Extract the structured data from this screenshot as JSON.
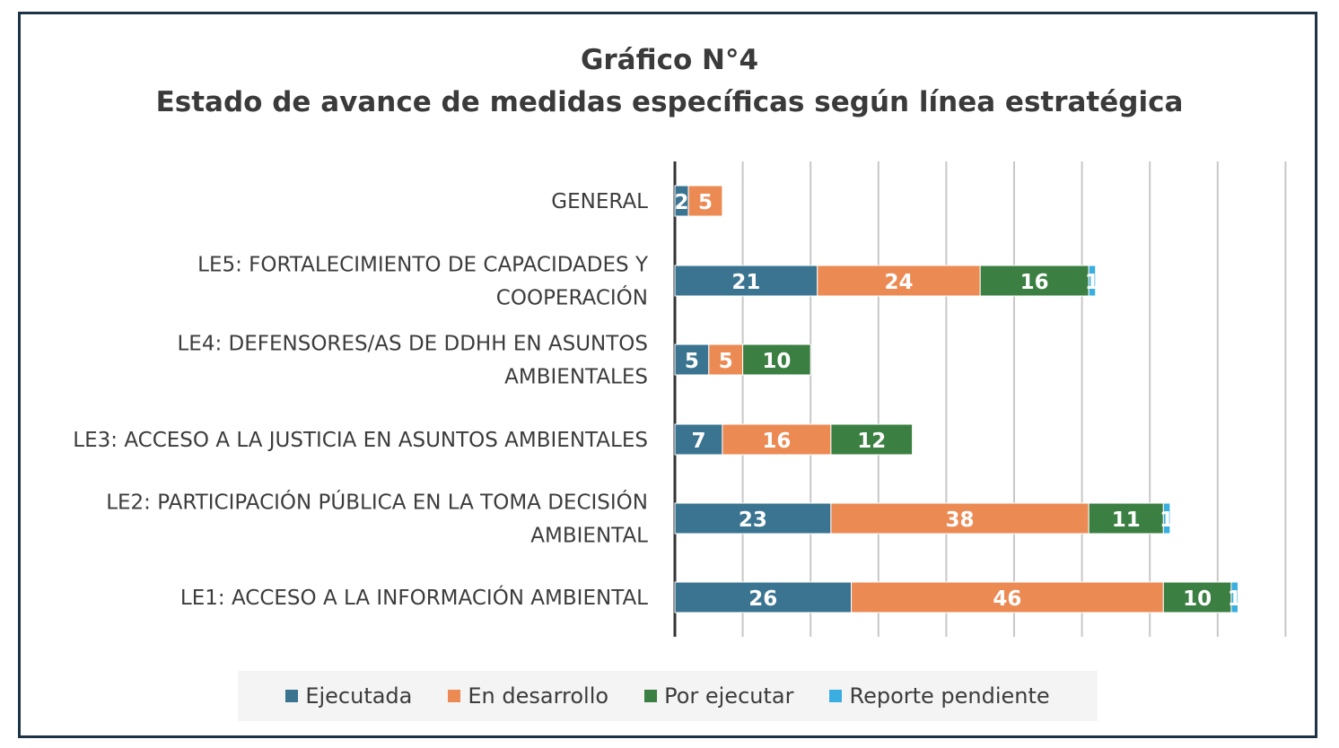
{
  "title_line1": "Gráfico N°4",
  "title_line2": "Estado de avance de medidas específicas según línea estratégica",
  "chart_data": {
    "type": "bar",
    "orientation": "horizontal",
    "stacked": true,
    "categories": [
      "GENERAL",
      "LE5: FORTALECIMIENTO DE CAPACIDADES Y COOPERACIÓN",
      "LE4: DEFENSORES/AS DE DDHH EN ASUNTOS AMBIENTALES",
      "LE3: ACCESO A LA JUSTICIA EN ASUNTOS AMBIENTALES",
      "LE2: PARTICIPACIÓN PÚBLICA EN LA TOMA DECISIÓN AMBIENTAL",
      "LE1: ACCESO A LA INFORMACIÓN AMBIENTAL"
    ],
    "category_label_lines": [
      [
        "GENERAL"
      ],
      [
        "LE5: FORTALECIMIENTO DE CAPACIDADES Y",
        "COOPERACIÓN"
      ],
      [
        "LE4: DEFENSORES/AS DE DDHH EN ASUNTOS",
        "AMBIENTALES"
      ],
      [
        "LE3: ACCESO A LA JUSTICIA EN ASUNTOS AMBIENTALES"
      ],
      [
        "LE2: PARTICIPACIÓN PÚBLICA EN LA TOMA DECISIÓN",
        "AMBIENTAL"
      ],
      [
        "LE1: ACCESO A LA INFORMACIÓN AMBIENTAL"
      ]
    ],
    "series": [
      {
        "name": "Ejecutada",
        "color": "#3a7491",
        "values": [
          2,
          21,
          5,
          7,
          23,
          26
        ]
      },
      {
        "name": "En desarrollo",
        "color": "#ec8a54",
        "values": [
          5,
          24,
          5,
          16,
          38,
          46
        ]
      },
      {
        "name": "Por ejecutar",
        "color": "#3b7f42",
        "values": [
          0,
          16,
          10,
          12,
          11,
          10
        ]
      },
      {
        "name": "Reporte pendiente",
        "color": "#3aaee0",
        "values": [
          0,
          1,
          0,
          0,
          1,
          1
        ]
      }
    ],
    "xlim": [
      0,
      90
    ],
    "grid": true,
    "legend_position": "bottom"
  }
}
